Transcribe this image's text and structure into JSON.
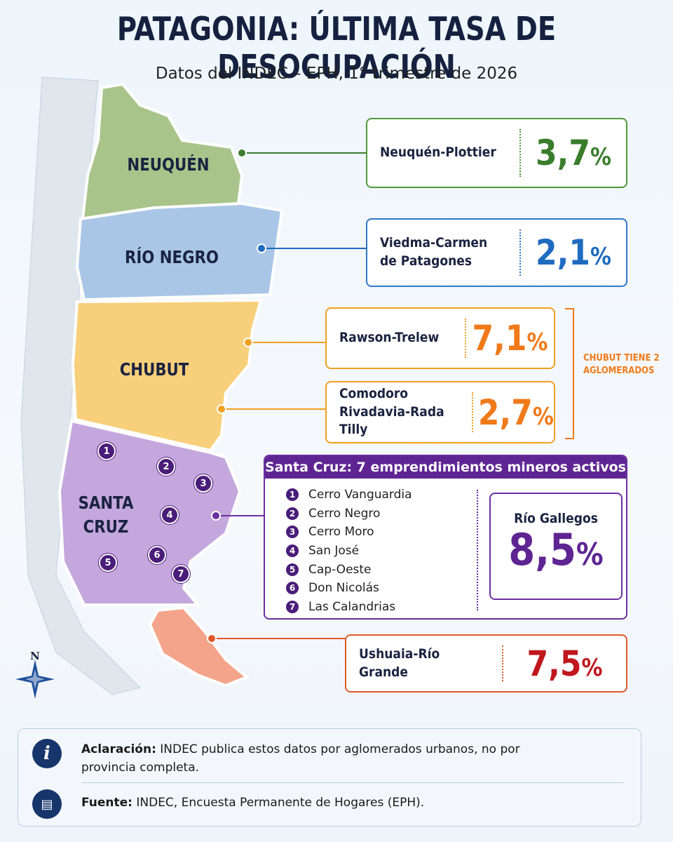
{
  "header": {
    "title": "PATAGONIA: ÚLTIMA TASA DE DESOCUPACIÓN",
    "subtitle": "Datos del INDEC – EPH, 1° trimestre de 2026"
  },
  "provinces": [
    {
      "name": "NEUQUÉN"
    },
    {
      "name": "RÍO NEGRO"
    },
    {
      "name": "CHUBUT"
    },
    {
      "name": "SANTA CRUZ"
    }
  ],
  "rate_unit": "%",
  "aglomerados": [
    {
      "name": "Neuquén-Plottier",
      "rate": "3,7"
    },
    {
      "name": "Viedma-Carmen de Patagones",
      "rate": "2,1"
    },
    {
      "name": "Rawson-Trelew",
      "rate": "7,1"
    },
    {
      "name": "Comodoro Rivadavia-Rada Tilly",
      "rate": "2,7"
    },
    {
      "name": "Ushuaia-Río Grande",
      "rate": "7,5"
    }
  ],
  "chubut_note": "CHUBUT TIENE 2 AGLOMERADOS",
  "santa_cruz": {
    "heading": "Santa Cruz: 7 emprendimientos mineros activos",
    "mines": [
      {
        "number": "1",
        "name": "Cerro Vanguardia"
      },
      {
        "number": "2",
        "name": "Cerro Negro"
      },
      {
        "number": "3",
        "name": "Cerro Moro"
      },
      {
        "number": "4",
        "name": "San José"
      },
      {
        "number": "5",
        "name": "Cap-Oeste"
      },
      {
        "number": "6",
        "name": "Don Nicolás"
      },
      {
        "number": "7",
        "name": "Las Calandrias"
      }
    ],
    "aglomerado": {
      "name": "Río Gallegos",
      "rate": "8,5"
    }
  },
  "compass": "N",
  "notes": [
    {
      "label": "Aclaración:",
      "text": "INDEC publica estos datos por aglomerados urbanos, no por provincia completa."
    },
    {
      "label": "Fuente:",
      "text": "INDEC, Encuesta Permanente de Hogares (EPH)."
    }
  ]
}
